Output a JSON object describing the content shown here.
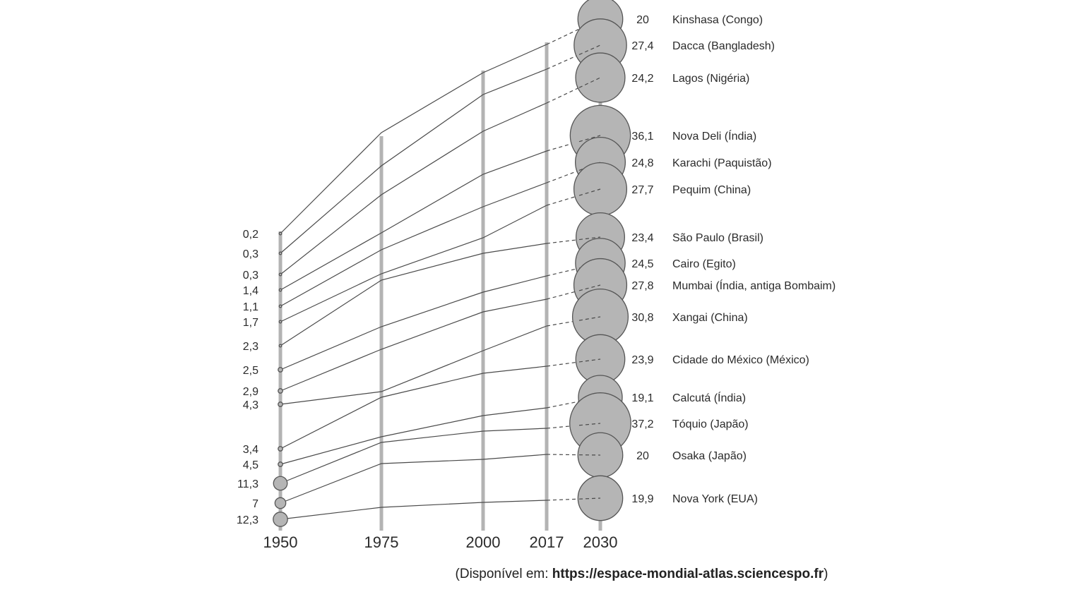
{
  "chart_data": {
    "type": "line",
    "unit_note": "",
    "years": [
      "1950",
      "1975",
      "2000",
      "2017",
      "2030"
    ],
    "colors": {
      "axis": "#b3b3b3",
      "line": "#4a4a4a",
      "bubble_fill": "#b5b5b5",
      "bubble_stroke": "#555555"
    },
    "left_labels_1950": [
      "0,2",
      "0,3",
      "0,3",
      "1,4",
      "1,1",
      "1,7",
      "2,3",
      "2,5",
      "2,9",
      "4,3",
      "3,4",
      "4,5",
      "11,3",
      "7",
      "12,3"
    ],
    "series": [
      {
        "name": "Kinshasa (Congo)",
        "label_2030": "20",
        "values": {
          "1950": 0.2,
          "2030": 20
        }
      },
      {
        "name": "Dacca (Bangladesh)",
        "label_2030": "27,4",
        "values": {
          "1950": 0.3,
          "2030": 27.4
        }
      },
      {
        "name": "Lagos (Nigéria)",
        "label_2030": "24,2",
        "values": {
          "1950": 0.3,
          "2030": 24.2
        }
      },
      {
        "name": "Nova Deli (Índia)",
        "label_2030": "36,1",
        "values": {
          "1950": 1.4,
          "2030": 36.1
        }
      },
      {
        "name": "Karachi (Paquistão)",
        "label_2030": "24,8",
        "values": {
          "1950": 1.1,
          "2030": 24.8
        }
      },
      {
        "name": "Pequim (China)",
        "label_2030": "27,7",
        "values": {
          "1950": 1.7,
          "2030": 27.7
        }
      },
      {
        "name": "São Paulo (Brasil)",
        "label_2030": "23,4",
        "values": {
          "1950": 2.3,
          "2030": 23.4
        }
      },
      {
        "name": "Cairo (Egito)",
        "label_2030": "24,5",
        "values": {
          "1950": 2.5,
          "2030": 24.5
        }
      },
      {
        "name": "Mumbai (Índia, antiga Bombaim)",
        "label_2030": "27,8",
        "values": {
          "1950": 2.9,
          "2030": 27.8
        }
      },
      {
        "name": "Xangai (China)",
        "label_2030": "30,8",
        "values": {
          "1950": 4.3,
          "2030": 30.8
        }
      },
      {
        "name": "Cidade do México (México)",
        "label_2030": "23,9",
        "values": {
          "1950": 3.4,
          "2030": 23.9
        }
      },
      {
        "name": "Calcutá (Índia)",
        "label_2030": "19,1",
        "values": {
          "1950": 4.5,
          "2030": 19.1
        }
      },
      {
        "name": "Tóquio (Japão)",
        "label_2030": "37,2",
        "values": {
          "1950": 11.3,
          "2030": 37.2
        }
      },
      {
        "name": "Osaka (Japão)",
        "label_2030": "20",
        "values": {
          "1950": 7,
          "2030": 20
        }
      },
      {
        "name": "Nova York (EUA)",
        "label_2030": "19,9",
        "values": {
          "1950": 12.3,
          "2030": 19.9
        }
      }
    ]
  },
  "source": {
    "prefix": "(Disponível em: ",
    "url": "https://espace-mondial-atlas.sciencespo.fr",
    "suffix": ")"
  }
}
